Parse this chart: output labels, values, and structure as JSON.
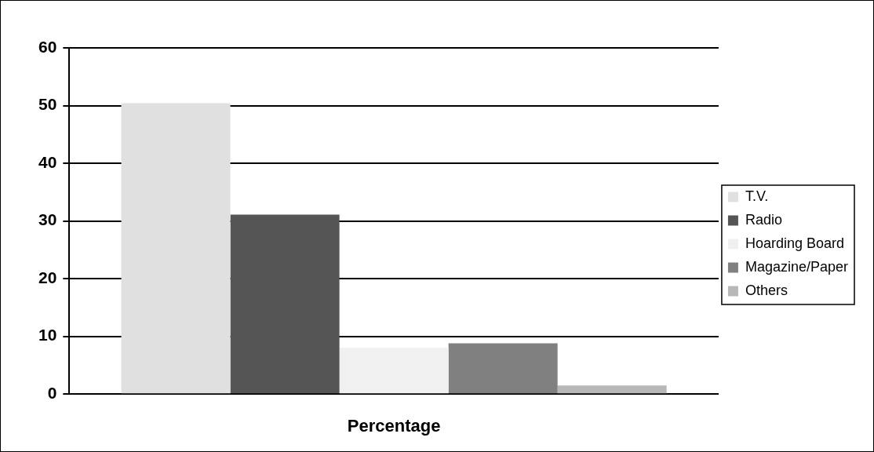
{
  "chart_data": {
    "type": "bar",
    "xlabel": "Percentage",
    "categories": [
      null
    ],
    "series": [
      {
        "name": "T.V.",
        "color": "#e0e0e0",
        "values": [
          50.4
        ]
      },
      {
        "name": "Radio",
        "color": "#555555",
        "values": [
          31.1
        ]
      },
      {
        "name": "Hoarding Board",
        "color": "#f0f0f0",
        "values": [
          8.0
        ]
      },
      {
        "name": "Magazine/Paper",
        "color": "#808080",
        "values": [
          8.8
        ]
      },
      {
        "name": "Others",
        "color": "#b8b8b8",
        "values": [
          1.5
        ]
      }
    ],
    "ylim": [
      0,
      60
    ],
    "yticks": [
      0,
      10,
      20,
      30,
      40,
      50,
      60
    ],
    "grid": "y",
    "legend": "right"
  }
}
